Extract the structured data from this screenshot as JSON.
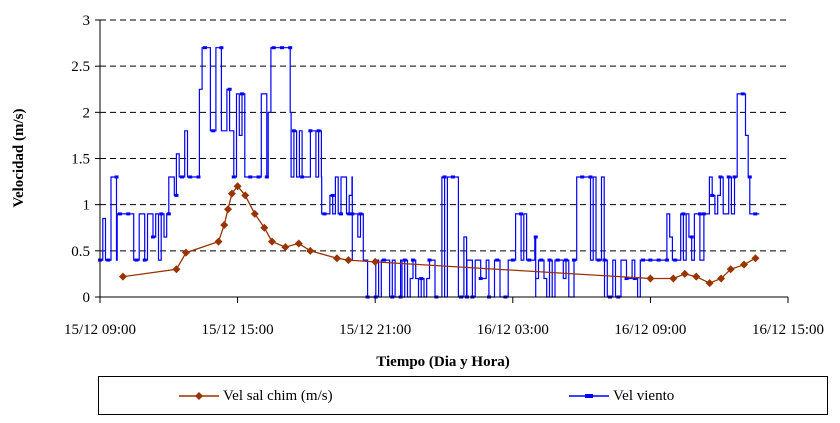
{
  "chart_data": {
    "type": "line",
    "xlabel": "Tiempo (Dia y Hora)",
    "ylabel": "Velocidad (m/s)",
    "ylim": [
      0,
      3
    ],
    "xlim_hours": [
      9,
      39
    ],
    "x_ticks": [
      "15/12 09:00",
      "15/12 15:00",
      "15/12 21:00",
      "16/12 03:00",
      "16/12 09:00",
      "16/12 15:00"
    ],
    "y_ticks": [
      "0",
      "0.5",
      "1",
      "1.5",
      "2",
      "2.5",
      "3"
    ],
    "grid": "horizontal-dashed",
    "legend_position": "bottom",
    "series": [
      {
        "name": "Vel sal chim (m/s)",
        "color": "#993300",
        "marker": "diamond",
        "x": [
          "15/12 10:00",
          "15/12 12:20",
          "15/12 12:45",
          "15/12 14:10",
          "15/12 14:25",
          "15/12 14:35",
          "15/12 14:45",
          "15/12 15:00",
          "15/12 15:20",
          "15/12 15:45",
          "15/12 16:10",
          "15/12 16:30",
          "15/12 17:05",
          "15/12 17:40",
          "15/12 18:10",
          "15/12 19:20",
          "15/12 19:50",
          "15/12 21:00",
          "16/12 09:00",
          "16/12 10:00",
          "16/12 10:30",
          "16/12 11:00",
          "16/12 11:35",
          "16/12 12:05",
          "16/12 12:30",
          "16/12 13:05",
          "16/12 13:35"
        ],
        "y": [
          0.22,
          0.3,
          0.48,
          0.6,
          0.78,
          0.95,
          1.12,
          1.2,
          1.1,
          0.9,
          0.75,
          0.6,
          0.54,
          0.58,
          0.5,
          0.42,
          0.4,
          0.38,
          0.2,
          0.2,
          0.25,
          0.22,
          0.15,
          0.2,
          0.3,
          0.35,
          0.42
        ]
      },
      {
        "name": "Vel viento",
        "color": "#0000ff",
        "marker": "dash",
        "segments": [
          {
            "from": "15/12 09:00",
            "to": "15/12 09:45",
            "low": 0.4,
            "high": 1.3
          },
          {
            "from": "15/12 09:45",
            "to": "15/12 12:00",
            "low": 0.4,
            "high": 0.9
          },
          {
            "from": "15/12 12:00",
            "to": "15/12 12:20",
            "low": 0.9,
            "high": 1.3
          },
          {
            "from": "15/12 12:20",
            "to": "15/12 13:20",
            "low": 1.3,
            "high": 1.8
          },
          {
            "from": "15/12 13:20",
            "to": "15/12 14:50",
            "low": 1.8,
            "high": 2.7
          },
          {
            "from": "15/12 14:50",
            "to": "15/12 16:20",
            "low": 1.3,
            "high": 2.2
          },
          {
            "from": "15/12 16:20",
            "to": "15/12 17:20",
            "low": 1.3,
            "high": 2.7
          },
          {
            "from": "15/12 17:20",
            "to": "15/12 18:40",
            "low": 1.3,
            "high": 1.8
          },
          {
            "from": "15/12 18:40",
            "to": "15/12 20:00",
            "low": 0.9,
            "high": 1.3
          },
          {
            "from": "15/12 20:00",
            "to": "15/12 20:40",
            "low": 0.4,
            "high": 0.9
          },
          {
            "from": "15/12 20:40",
            "to": "15/12 22:10",
            "low": 0.0,
            "high": 0.4
          },
          {
            "from": "15/12 22:10",
            "to": "15/12 23:40",
            "low": 0.0,
            "high": 0.4
          },
          {
            "from": "15/12 23:40",
            "to": "16/12 01:00",
            "low": 0.0,
            "high": 1.3
          },
          {
            "from": "16/12 01:00",
            "to": "16/12 03:00",
            "low": 0.0,
            "high": 0.4
          },
          {
            "from": "16/12 03:00",
            "to": "16/12 04:00",
            "low": 0.4,
            "high": 0.9
          },
          {
            "from": "16/12 04:00",
            "to": "16/12 05:40",
            "low": 0.0,
            "high": 0.4
          },
          {
            "from": "16/12 05:40",
            "to": "16/12 07:00",
            "low": 0.4,
            "high": 1.3
          },
          {
            "from": "16/12 07:00",
            "to": "16/12 09:00",
            "low": 0.0,
            "high": 0.4
          },
          {
            "from": "16/12 09:00",
            "to": "16/12 11:20",
            "low": 0.4,
            "high": 0.9
          },
          {
            "from": "16/12 11:20",
            "to": "16/12 12:40",
            "low": 0.9,
            "high": 1.3
          },
          {
            "from": "16/12 12:40",
            "to": "16/12 13:20",
            "low": 1.3,
            "high": 2.2
          },
          {
            "from": "16/12 13:20",
            "to": "16/12 13:45",
            "low": 0.9,
            "high": 1.8
          }
        ]
      }
    ]
  }
}
